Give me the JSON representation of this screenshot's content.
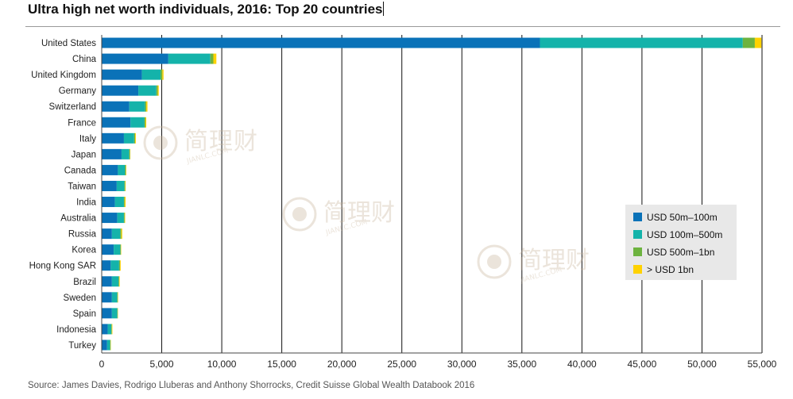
{
  "title": "Ultra high net worth individuals, 2016: Top 20 countries",
  "source": "Source: James Davies, Rodrigo Lluberas and Anthony Shorrocks, Credit Suisse Global Wealth Databook 2016",
  "watermark": {
    "text": "简理财",
    "subtext": "JIANLC.COM"
  },
  "colors": {
    "usd_50m_100m": "#0a72b8",
    "usd_100m_500m": "#14b3aa",
    "usd_500m_1bn": "#6db33f",
    "usd_1bn_plus": "#ffd200",
    "axis_text": "#222222",
    "gridline": "#111111",
    "legend_bg": "#e8e8e8"
  },
  "chart_data": {
    "type": "bar",
    "orientation": "horizontal",
    "stacked": true,
    "title": "Ultra high net worth individuals, 2016: Top 20 countries",
    "xlabel": "",
    "ylabel": "",
    "xlim": [
      0,
      55000
    ],
    "x_ticks": [
      0,
      5000,
      10000,
      15000,
      20000,
      25000,
      30000,
      35000,
      40000,
      45000,
      50000,
      55000
    ],
    "x_tick_labels": [
      "0",
      "5,000",
      "10,000",
      "15,000",
      "20,000",
      "25,000",
      "30,000",
      "35,000",
      "40,000",
      "45,000",
      "50,000",
      "55,000"
    ],
    "grid": "vertical",
    "legend_position": "right",
    "categories": [
      "United States",
      "China",
      "United Kingdom",
      "Germany",
      "Switzerland",
      "France",
      "Italy",
      "Japan",
      "Canada",
      "Taiwan",
      "India",
      "Australia",
      "Russia",
      "Korea",
      "Hong Kong SAR",
      "Brazil",
      "Sweden",
      "Spain",
      "Indonesia",
      "Turkey"
    ],
    "series": [
      {
        "name": "USD 50m–100m",
        "color": "#0a72b8",
        "values": [
          36500,
          5550,
          3350,
          3050,
          2300,
          2400,
          1850,
          1650,
          1350,
          1250,
          1100,
          1300,
          850,
          1000,
          750,
          850,
          850,
          850,
          500,
          450
        ]
      },
      {
        "name": "USD 100m–500m",
        "color": "#14b3aa",
        "values": [
          16900,
          3500,
          1550,
          1500,
          1300,
          1150,
          850,
          650,
          600,
          650,
          750,
          550,
          700,
          550,
          700,
          550,
          450,
          450,
          300,
          250
        ]
      },
      {
        "name": "USD 500m–1bn",
        "color": "#6db33f",
        "values": [
          1000,
          250,
          150,
          120,
          110,
          90,
          80,
          50,
          60,
          50,
          60,
          60,
          80,
          50,
          70,
          60,
          40,
          40,
          50,
          30
        ]
      },
      {
        "name": "> USD 1bn",
        "color": "#ffd200",
        "values": [
          550,
          250,
          100,
          80,
          100,
          70,
          60,
          30,
          40,
          40,
          80,
          40,
          80,
          30,
          60,
          40,
          30,
          20,
          40,
          30
        ]
      }
    ]
  }
}
